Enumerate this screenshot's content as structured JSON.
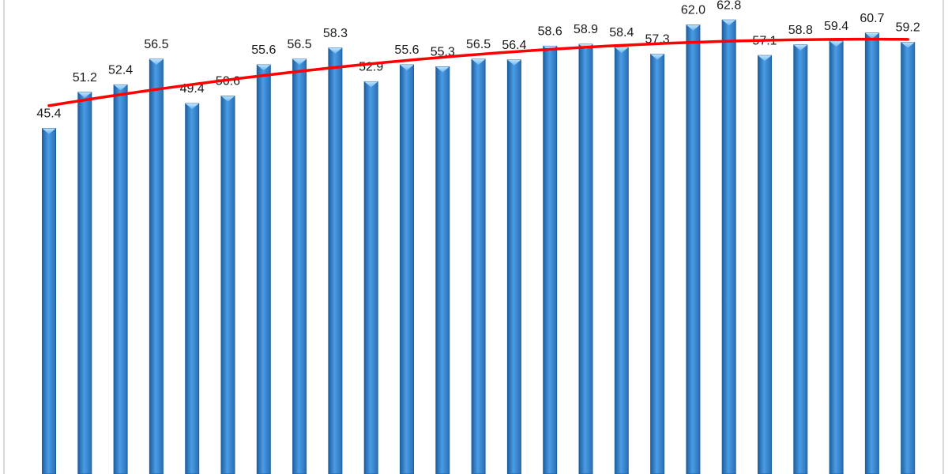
{
  "chart_data": {
    "type": "bar",
    "values": [
      45.4,
      51.2,
      52.4,
      56.5,
      49.4,
      50.6,
      55.6,
      56.5,
      58.3,
      52.9,
      55.6,
      55.3,
      56.5,
      56.4,
      58.6,
      58.9,
      58.4,
      57.3,
      62.0,
      62.8,
      57.1,
      58.8,
      59.4,
      60.7,
      59.2
    ],
    "labels": [
      "45.4",
      "51.2",
      "52.4",
      "56.5",
      "49.4",
      "50.6",
      "55.6",
      "56.5",
      "58.3",
      "52.9",
      "55.6",
      "55.3",
      "56.5",
      "56.4",
      "58.6",
      "58.9",
      "58.4",
      "57.3",
      "62.0",
      "62.8",
      "57.1",
      "58.8",
      "59.4",
      "60.7",
      "59.2"
    ],
    "title": "",
    "xlabel": "",
    "ylabel": "",
    "ylim": [
      -10,
      66
    ],
    "trendline": {
      "type": "polynomial",
      "color": "#ff0000"
    },
    "bar_color": "#3d8fd9",
    "bar_edge_color": "#1f5f9e",
    "grid": false,
    "legend": "none"
  }
}
